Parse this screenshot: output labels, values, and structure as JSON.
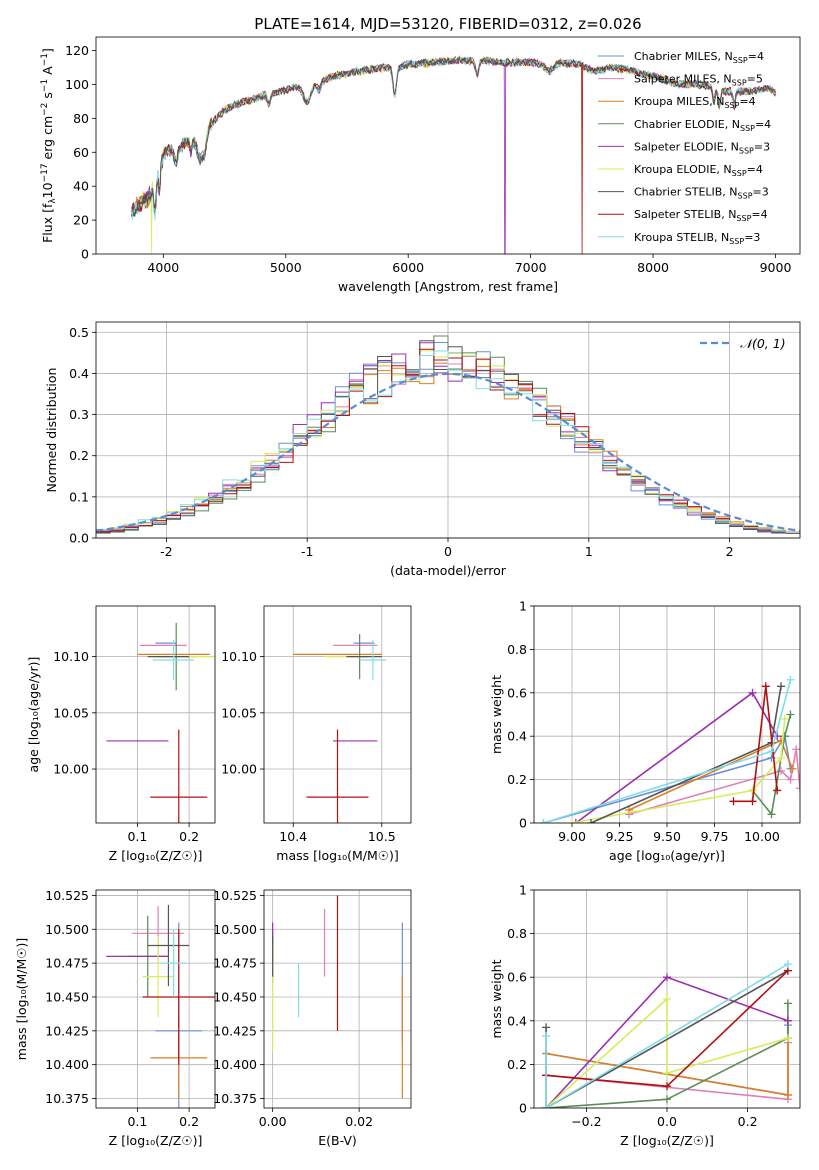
{
  "figure_title": "PLATE=1614, MJD=53120, FIBERID=0312, z=0.026",
  "series_colors": [
    "#6b8fd6",
    "#e07fb4",
    "#e07d22",
    "#5b8a5b",
    "#9b2fb0",
    "#d4ee5a",
    "#555555",
    "#b01010",
    "#7fdde6"
  ],
  "chart_data": [
    {
      "id": "spectrum",
      "type": "line",
      "xlabel": "wavelength [Angstrom, rest frame]",
      "ylabel_parts": [
        "Flux [f",
        "λ",
        "10",
        "−17",
        " erg cm",
        "−2",
        " s",
        "−1",
        " A",
        "−1",
        "]"
      ],
      "xlim": [
        3450,
        9200
      ],
      "ylim": [
        0,
        128
      ],
      "xticks": [
        4000,
        5000,
        6000,
        7000,
        8000,
        9000
      ],
      "yticks": [
        0,
        20,
        40,
        60,
        80,
        100,
        120
      ],
      "grid": false,
      "legend_position": "upper-right",
      "legend": [
        {
          "name": "Chabrier MILES, N",
          "sub": "SSP",
          "suffix": "=4"
        },
        {
          "name": "Salpeter MILES, N",
          "sub": "SSP",
          "suffix": "=5"
        },
        {
          "name": "Kroupa MILES, N",
          "sub": "SSP",
          "suffix": "=4"
        },
        {
          "name": "Chabrier ELODIE, N",
          "sub": "SSP",
          "suffix": "=4"
        },
        {
          "name": "Salpeter ELODIE, N",
          "sub": "SSP",
          "suffix": "=3"
        },
        {
          "name": "Kroupa ELODIE, N",
          "sub": "SSP",
          "suffix": "=4"
        },
        {
          "name": "Chabrier STELIB, N",
          "sub": "SSP",
          "suffix": "=3"
        },
        {
          "name": "Salpeter STELIB, N",
          "sub": "SSP",
          "suffix": "=4"
        },
        {
          "name": "Kroupa STELIB, N",
          "sub": "SSP",
          "suffix": "=3"
        }
      ],
      "x_range": [
        3740,
        7500
      ],
      "continuum_nodes": [
        [
          3740,
          28
        ],
        [
          3800,
          32
        ],
        [
          3900,
          38
        ],
        [
          3950,
          52
        ],
        [
          4000,
          60
        ],
        [
          4100,
          62
        ],
        [
          4200,
          66
        ],
        [
          4300,
          70
        ],
        [
          4350,
          73
        ],
        [
          4500,
          85
        ],
        [
          4600,
          88
        ],
        [
          4800,
          93
        ],
        [
          5000,
          97
        ],
        [
          5200,
          100
        ],
        [
          5400,
          105
        ],
        [
          5600,
          108
        ],
        [
          5800,
          110
        ],
        [
          5900,
          110
        ],
        [
          6000,
          112
        ],
        [
          6200,
          113
        ],
        [
          6400,
          114
        ],
        [
          6600,
          114
        ],
        [
          6800,
          113
        ],
        [
          7000,
          113
        ],
        [
          7200,
          113
        ],
        [
          7400,
          112
        ],
        [
          7500,
          108
        ],
        [
          7700,
          110
        ],
        [
          8000,
          105
        ],
        [
          8200,
          100
        ],
        [
          8400,
          100
        ],
        [
          8600,
          96
        ],
        [
          8800,
          96
        ],
        [
          8950,
          98
        ],
        [
          9000,
          95
        ]
      ],
      "absorption_lines": [
        [
          3933,
          10,
          20
        ],
        [
          3968,
          8,
          15
        ],
        [
          4102,
          14,
          8
        ],
        [
          4226,
          8,
          6
        ],
        [
          4304,
          25,
          14
        ],
        [
          4340,
          14,
          8
        ],
        [
          4861,
          12,
          6
        ],
        [
          5175,
          30,
          10
        ],
        [
          5270,
          16,
          5
        ],
        [
          5890,
          14,
          16
        ],
        [
          6563,
          14,
          8
        ],
        [
          7150,
          40,
          5
        ],
        [
          8498,
          10,
          8
        ],
        [
          8542,
          10,
          10
        ],
        [
          8662,
          10,
          8
        ]
      ],
      "edge_drops": [
        [
          3905,
          5
        ],
        [
          6790,
          4
        ],
        [
          7420,
          7
        ]
      ],
      "extended_x_max": 9000
    },
    {
      "id": "residuals",
      "type": "step-histogram",
      "xlabel": "(data-model)/error",
      "ylabel": "Normed distribution",
      "xlim": [
        -2.5,
        2.5
      ],
      "ylim": [
        0,
        0.525
      ],
      "xticks": [
        -2,
        -1,
        0,
        1,
        2
      ],
      "yticks": [
        0.0,
        0.1,
        0.2,
        0.3,
        0.4,
        0.5
      ],
      "grid": true,
      "legend_position": "upper-right",
      "legend": [
        "𝒩(0, 1)"
      ],
      "bin_width": 0.1
    },
    {
      "id": "age_vs_Z",
      "type": "errorbar",
      "xlabel": "Z [log₁₀(Z/Z☉)]",
      "ylabel": "age  [log₁₀(age/yr)]",
      "xlim": [
        0.02,
        0.25
      ],
      "ylim": [
        9.952,
        10.145
      ],
      "xticks": [
        0.1,
        0.2
      ],
      "xticklabels": [
        "0.1",
        "0.2"
      ],
      "yticks": [
        10.0,
        10.05,
        10.1
      ],
      "yticklabels": [
        "10.00",
        "10.05",
        "10.10"
      ],
      "grid": true,
      "points": [
        [
          0.155,
          10.112,
          0.02,
          0.0
        ],
        [
          0.15,
          10.11,
          0.045,
          0.0
        ],
        [
          0.17,
          10.102,
          0.07,
          0.0
        ],
        [
          0.175,
          10.1,
          0.04,
          0.03
        ],
        [
          0.1,
          10.025,
          0.06,
          0.0
        ],
        [
          0.19,
          10.1,
          0.06,
          0.0
        ],
        [
          0.16,
          10.1,
          0.04,
          0.0
        ],
        [
          0.18,
          9.975,
          0.055,
          0.06
        ],
        [
          0.17,
          10.097,
          0.04,
          0.018
        ]
      ]
    },
    {
      "id": "age_vs_mass",
      "type": "errorbar",
      "xlabel": "mass [log₁₀(M/M☉)]",
      "ylabel": "",
      "xlim": [
        10.367,
        10.533
      ],
      "ylim": [
        9.952,
        10.145
      ],
      "xticks": [
        10.4,
        10.5
      ],
      "xticklabels": [
        "10.4",
        "10.5"
      ],
      "yticks": [
        10.0,
        10.05,
        10.1
      ],
      "yticklabels": [
        "10.00",
        "10.05",
        "10.10"
      ],
      "grid": true,
      "points": [
        [
          10.48,
          10.112,
          0.012,
          0.0
        ],
        [
          10.47,
          10.11,
          0.025,
          0.0
        ],
        [
          10.45,
          10.102,
          0.05,
          0.0
        ],
        [
          10.475,
          10.1,
          0.01,
          0.02
        ],
        [
          10.47,
          10.025,
          0.025,
          0.0
        ],
        [
          10.455,
          10.1,
          0.02,
          0.0
        ],
        [
          10.48,
          10.1,
          0.02,
          0.0
        ],
        [
          10.45,
          9.975,
          0.035,
          0.06
        ],
        [
          10.49,
          10.097,
          0.015,
          0.018
        ]
      ]
    },
    {
      "id": "weight_vs_age",
      "type": "line",
      "xlabel": "age  [log₁₀(age/yr)]",
      "ylabel": "mass weight",
      "xlim": [
        8.8,
        10.2
      ],
      "ylim": [
        0.0,
        1.0
      ],
      "xticks": [
        9.0,
        9.25,
        9.5,
        9.75,
        10.0
      ],
      "xticklabels": [
        "9.00",
        "9.25",
        "9.50",
        "9.75",
        "10.00"
      ],
      "yticks": [
        0.0,
        0.2,
        0.4,
        0.6,
        0.8,
        1.0
      ],
      "grid": true,
      "series": [
        {
          "points": [
            [
              8.85,
              0.0
            ],
            [
              10.05,
              0.3
            ],
            [
              10.12,
              0.4
            ],
            [
              10.15,
              0.25
            ]
          ]
        },
        {
          "points": [
            [
              9.3,
              0.04
            ],
            [
              10.1,
              0.24
            ],
            [
              10.15,
              0.2
            ],
            [
              10.18,
              0.34
            ],
            [
              10.2,
              0.16
            ]
          ]
        },
        {
          "points": [
            [
              9.3,
              0.06
            ],
            [
              10.1,
              0.38
            ],
            [
              10.16,
              0.25
            ]
          ]
        },
        {
          "points": [
            [
              9.95,
              0.15
            ],
            [
              10.05,
              0.04
            ],
            [
              10.12,
              0.4
            ],
            [
              10.15,
              0.5
            ]
          ]
        },
        {
          "points": [
            [
              9.02,
              0.0
            ],
            [
              9.95,
              0.6
            ],
            [
              10.08,
              0.4
            ]
          ]
        },
        {
          "points": [
            [
              9.0,
              0.0
            ],
            [
              9.95,
              0.15
            ],
            [
              10.1,
              0.3
            ],
            [
              10.12,
              0.48
            ]
          ]
        },
        {
          "points": [
            [
              9.1,
              0.0
            ],
            [
              10.05,
              0.37
            ],
            [
              10.1,
              0.63
            ]
          ]
        },
        {
          "points": [
            [
              9.85,
              0.1
            ],
            [
              9.95,
              0.1
            ],
            [
              10.02,
              0.63
            ],
            [
              10.08,
              0.15
            ]
          ]
        },
        {
          "points": [
            [
              8.85,
              0.0
            ],
            [
              10.05,
              0.33
            ],
            [
              10.15,
              0.66
            ]
          ]
        }
      ]
    },
    {
      "id": "mass_vs_Z",
      "type": "errorbar",
      "xlabel": "Z [log₁₀(Z/Z☉)]",
      "ylabel": "mass [log₁₀(M/M☉)]",
      "xlim": [
        0.02,
        0.25
      ],
      "ylim": [
        10.368,
        10.529
      ],
      "xticks": [
        0.1,
        0.2
      ],
      "xticklabels": [
        "0.1",
        "0.2"
      ],
      "yticks": [
        10.375,
        10.4,
        10.425,
        10.45,
        10.475,
        10.5,
        10.525
      ],
      "yticklabels": [
        "10.375",
        "10.400",
        "10.425",
        "10.450",
        "10.475",
        "10.500",
        "10.525"
      ],
      "grid": true,
      "points": [
        [
          0.18,
          10.425,
          0.045,
          0.08
        ],
        [
          0.14,
          10.497,
          0.05,
          0.02
        ],
        [
          0.18,
          10.405,
          0.055,
          0.03
        ],
        [
          0.12,
          10.48,
          0.04,
          0.03
        ],
        [
          0.1,
          10.48,
          0.06,
          0.0
        ],
        [
          0.14,
          10.465,
          0.03,
          0.03
        ],
        [
          0.16,
          10.488,
          0.04,
          0.03
        ],
        [
          0.18,
          10.45,
          0.07,
          0.05
        ],
        [
          0.17,
          10.475,
          0.025,
          0.025
        ]
      ]
    },
    {
      "id": "mass_vs_EBV",
      "type": "errorbar",
      "xlabel": "E(B-V)",
      "ylabel": "",
      "xlim": [
        -0.002,
        0.032
      ],
      "ylim": [
        10.368,
        10.529
      ],
      "xticks": [
        0.0,
        0.02
      ],
      "xticklabels": [
        "0.00",
        "0.02"
      ],
      "yticks": [
        10.375,
        10.4,
        10.425,
        10.45,
        10.475,
        10.5,
        10.525
      ],
      "yticklabels": [
        "10.375",
        "10.400",
        "10.425",
        "10.450",
        "10.475",
        "10.500",
        "10.525"
      ],
      "grid": true,
      "points": [
        [
          0.03,
          10.46,
          0.0,
          0.045
        ],
        [
          0.012,
          10.49,
          0.0,
          0.025
        ],
        [
          0.03,
          10.42,
          0.0,
          0.045
        ],
        [
          0.0,
          10.48,
          0.0,
          0.02
        ],
        [
          0.0,
          10.49,
          0.0,
          0.015
        ],
        [
          0.0,
          10.45,
          0.0,
          0.04
        ],
        [
          0.0,
          10.48,
          0.0,
          0.015
        ],
        [
          0.015,
          10.475,
          0.0,
          0.05
        ],
        [
          0.006,
          10.455,
          0.0,
          0.02
        ]
      ]
    },
    {
      "id": "weight_vs_Z",
      "type": "line",
      "xlabel": "Z [log₁₀(Z/Z☉)]",
      "ylabel": "mass weight",
      "xlim": [
        -0.33,
        0.33
      ],
      "ylim": [
        0.0,
        1.0
      ],
      "xticks": [
        -0.2,
        0.0,
        0.2
      ],
      "xticklabels": [
        "−0.2",
        "0.0",
        "0.2"
      ],
      "yticks": [
        0.0,
        0.2,
        0.4,
        0.6,
        0.8,
        1.0
      ],
      "grid": true,
      "series": [
        {
          "points": [
            [
              -0.3,
              0.25
            ],
            [
              0.3,
              0.06
            ],
            [
              0.3,
              0.38
            ]
          ]
        },
        {
          "points": [
            [
              -0.3,
              0.15
            ],
            [
              0.3,
              0.04
            ],
            [
              0.3,
              0.3
            ]
          ]
        },
        {
          "points": [
            [
              -0.3,
              0.25
            ],
            [
              0.3,
              0.06
            ],
            [
              0.3,
              0.4
            ]
          ]
        },
        {
          "points": [
            [
              -0.3,
              0.0
            ],
            [
              0.0,
              0.04
            ],
            [
              0.3,
              0.32
            ],
            [
              0.3,
              0.48
            ]
          ]
        },
        {
          "points": [
            [
              -0.3,
              0.0
            ],
            [
              0.0,
              0.6
            ],
            [
              0.3,
              0.4
            ]
          ]
        },
        {
          "points": [
            [
              -0.3,
              0.0
            ],
            [
              0.0,
              0.5
            ],
            [
              0.0,
              0.16
            ],
            [
              0.3,
              0.32
            ]
          ]
        },
        {
          "points": [
            [
              -0.3,
              0.37
            ],
            [
              -0.3,
              0.0
            ],
            [
              0.3,
              0.63
            ]
          ]
        },
        {
          "points": [
            [
              -0.3,
              0.15
            ],
            [
              0.0,
              0.1
            ],
            [
              0.3,
              0.63
            ]
          ]
        },
        {
          "points": [
            [
              -0.3,
              0.33
            ],
            [
              -0.3,
              0.0
            ],
            [
              0.3,
              0.66
            ]
          ]
        }
      ]
    }
  ]
}
